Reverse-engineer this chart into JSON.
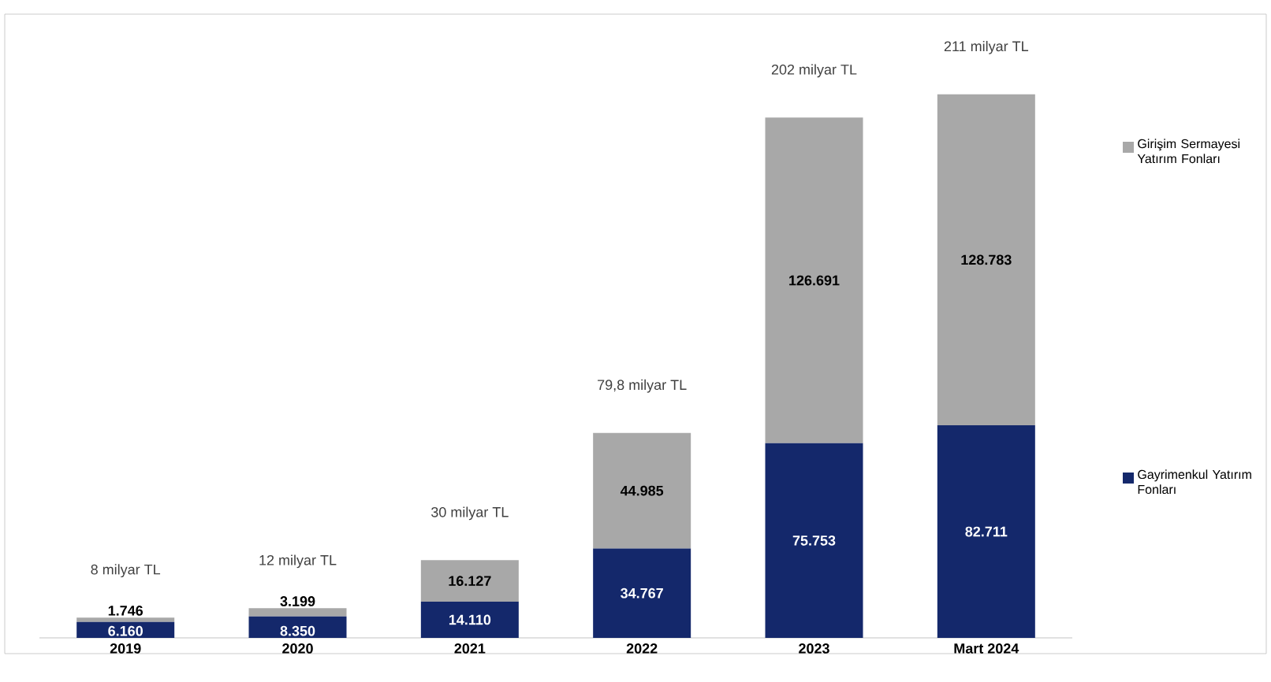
{
  "chart_data": {
    "type": "bar",
    "stacked": true,
    "legend": "right",
    "categories": [
      "2019",
      "2020",
      "2021",
      "2022",
      "2023",
      "Mart 2024"
    ],
    "series": [
      {
        "name": "Gayrimenkul Yatırım Fonları",
        "color": "#14286b",
        "values": [
          6160,
          8350,
          14110,
          34767,
          75753,
          82711
        ],
        "value_labels": [
          "6.160",
          "8.350",
          "14.110",
          "34.767",
          "75.753",
          "82.711"
        ]
      },
      {
        "name": "Girişim Sermayesi Yatırım Fonları",
        "color": "#a8a8a8",
        "values": [
          1746,
          3199,
          16127,
          44985,
          126691,
          128783
        ],
        "value_labels": [
          "1.746",
          "3.199",
          "16.127",
          "44.985",
          "126.691",
          "128.783"
        ]
      }
    ],
    "annotations": [
      {
        "text": "8 milyar TL",
        "x": "2019",
        "y": 7906
      },
      {
        "text": "12 milyar TL",
        "x": "2020",
        "y": 11549
      },
      {
        "text": "30 milyar TL",
        "x": "2021",
        "y": 30237
      },
      {
        "text": "79,8 milyar TL",
        "x": "2022",
        "y": 79752
      },
      {
        "text": "202 milyar TL",
        "x": "2023",
        "y": 202444
      },
      {
        "text": "211 milyar TL",
        "x": "Mart 2024",
        "y": 211494
      }
    ]
  }
}
